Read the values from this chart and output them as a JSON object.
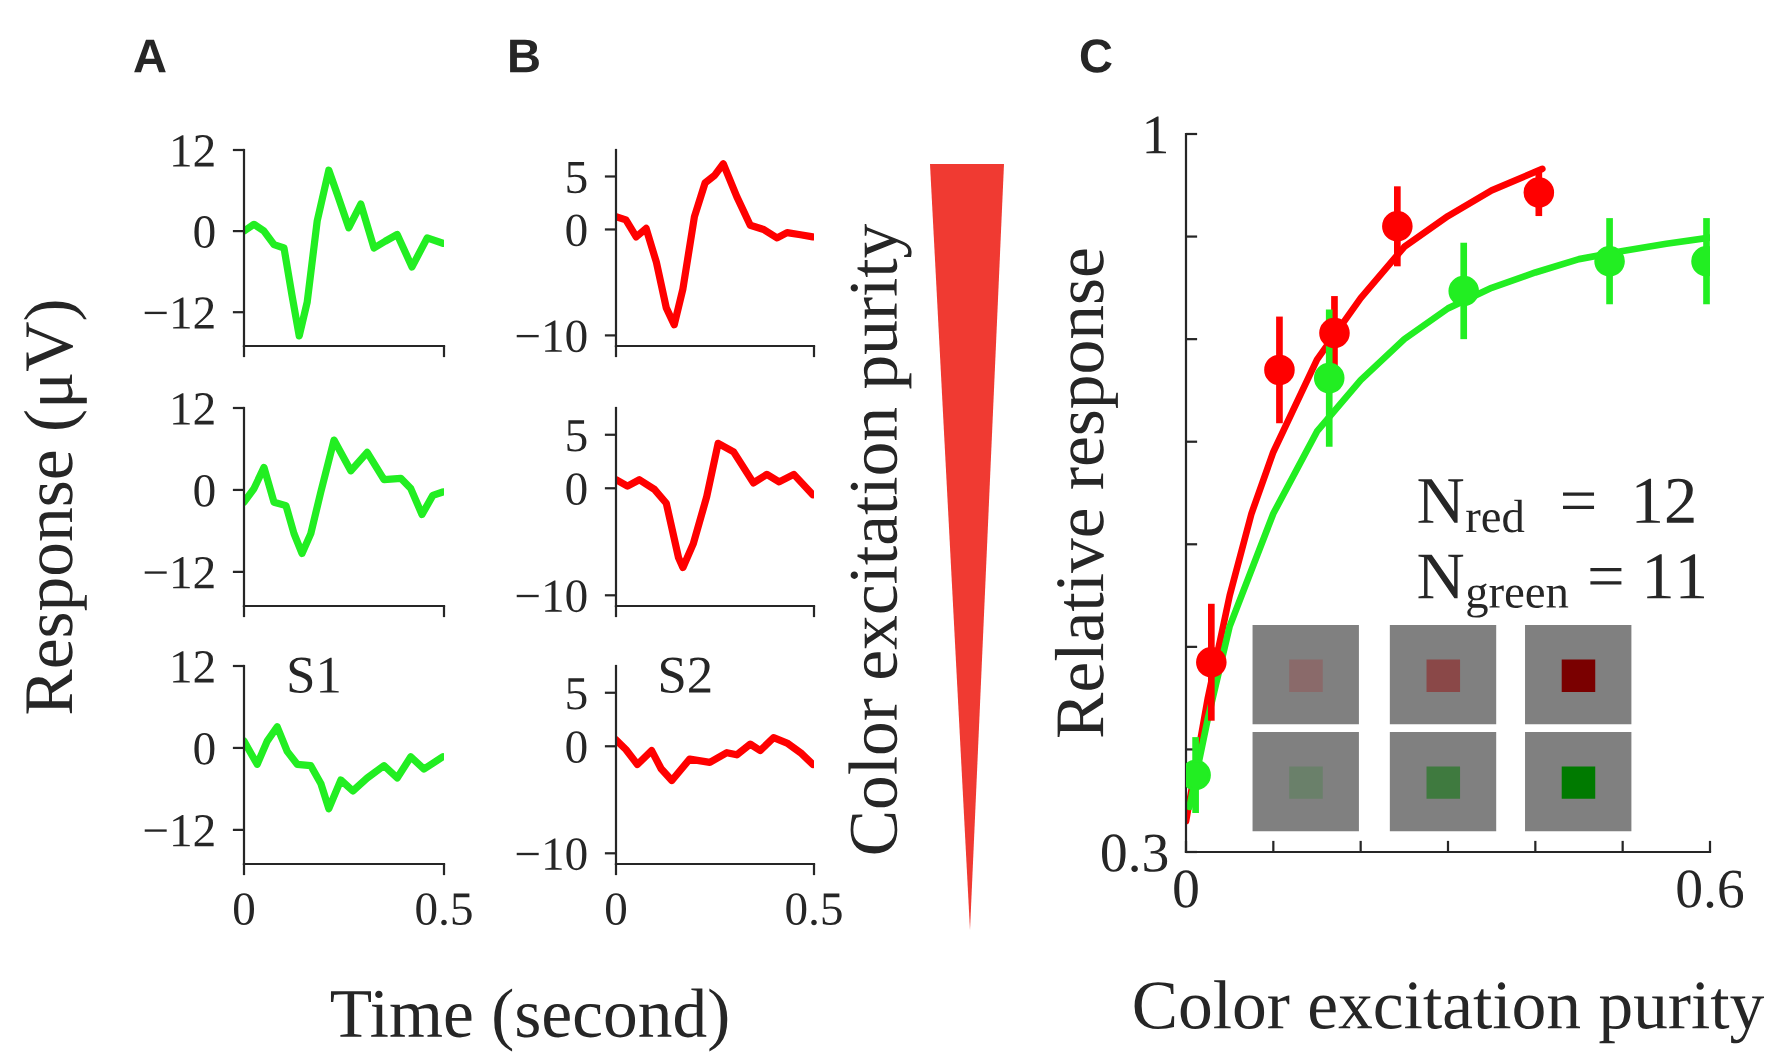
{
  "chart_data": [
    {
      "type": "line",
      "title": "A",
      "x": [
        0,
        0.025,
        0.05,
        0.075,
        0.1,
        0.12,
        0.138,
        0.158,
        0.183,
        0.212,
        0.233,
        0.262,
        0.292,
        0.325,
        0.353,
        0.383,
        0.42,
        0.458,
        0.497
      ],
      "series": [
        {
          "color": "#22ee22",
          "values": [
            0,
            1.0,
            0,
            -2,
            -2.5,
            -9.5,
            -15.5,
            -10.5,
            1.5,
            9,
            5.5,
            0.5,
            4,
            -2.5,
            -1.5,
            -0.5,
            -5.3,
            -1,
            -1.8
          ]
        }
      ],
      "xlim": [
        0,
        0.5
      ],
      "ylim": [
        -17,
        12
      ],
      "yticks": [
        {
          "value": -12,
          "label": "−12"
        },
        0,
        12
      ],
      "xticks": [
        0,
        0.5
      ],
      "tick_labels": "y"
    },
    {
      "type": "line",
      "ylabel": "Response (μV)",
      "x": [
        0,
        0.025,
        0.05,
        0.075,
        0.105,
        0.125,
        0.145,
        0.167,
        0.192,
        0.225,
        0.267,
        0.308,
        0.35,
        0.392,
        0.417,
        0.445,
        0.472,
        0.497
      ],
      "series": [
        {
          "color": "#22ee22",
          "values": [
            -1.8,
            0.2,
            3.3,
            -1.8,
            -2.3,
            -6.4,
            -9.3,
            -6.4,
            -0.3,
            7.3,
            2.8,
            5.5,
            1.5,
            1.7,
            0.2,
            -3.6,
            -0.8,
            -0.3
          ]
        }
      ],
      "xlim": [
        0,
        0.5
      ],
      "ylim": [
        -17,
        12
      ],
      "yticks": [
        {
          "value": -12,
          "label": "−12"
        },
        0,
        12
      ],
      "xticks": [
        0,
        0.5
      ],
      "tick_labels": "y"
    },
    {
      "type": "line",
      "annotations": [
        "S1",
        "Time (second)"
      ],
      "x": [
        0,
        0.033,
        0.058,
        0.083,
        0.108,
        0.133,
        0.167,
        0.192,
        0.212,
        0.242,
        0.272,
        0.308,
        0.35,
        0.383,
        0.417,
        0.45,
        0.497
      ],
      "series": [
        {
          "color": "#22ee22",
          "values": [
            1,
            -2.4,
            1,
            3.1,
            -0.5,
            -2.4,
            -2.6,
            -5.2,
            -8.9,
            -4.7,
            -6.3,
            -4.4,
            -2.6,
            -4.4,
            -1.3,
            -3.1,
            -1.3
          ]
        }
      ],
      "xlim": [
        0,
        0.5
      ],
      "ylim": [
        -17,
        12
      ],
      "yticks": [
        {
          "value": -12,
          "label": "−12"
        },
        0,
        12
      ],
      "xticks": [
        0,
        0.5
      ]
    },
    {
      "type": "line",
      "title": "B",
      "x": [
        0,
        0.025,
        0.051,
        0.076,
        0.102,
        0.127,
        0.147,
        0.169,
        0.198,
        0.225,
        0.249,
        0.271,
        0.305,
        0.339,
        0.373,
        0.407,
        0.432,
        0.466,
        0.497
      ],
      "series": [
        {
          "color": "#ff0000",
          "values": [
            1.2,
            0.9,
            -0.7,
            0.1,
            -3.1,
            -7.4,
            -9,
            -5.6,
            1.2,
            4.4,
            5.1,
            6.2,
            3.1,
            0.4,
            0,
            -0.8,
            -0.3,
            -0.5,
            -0.7
          ]
        }
      ],
      "xlim": [
        0,
        0.5
      ],
      "ylim": [
        -11,
        7.5
      ],
      "yticks": [
        {
          "value": -10,
          "label": "−10"
        },
        0,
        5
      ],
      "xticks": [
        0,
        0.5
      ],
      "tick_labels": "y"
    },
    {
      "type": "line",
      "annotations": [
        "Color excitation purity"
      ],
      "x": [
        0,
        0.029,
        0.059,
        0.097,
        0.127,
        0.158,
        0.169,
        0.195,
        0.229,
        0.258,
        0.297,
        0.347,
        0.381,
        0.412,
        0.449,
        0.497
      ],
      "series": [
        {
          "color": "#ff0000",
          "values": [
            0.8,
            0.2,
            0.8,
            -0.1,
            -1.4,
            -6.5,
            -7.4,
            -5.2,
            -0.8,
            4.2,
            3.4,
            0.5,
            1.3,
            0.6,
            1.3,
            -0.6
          ]
        }
      ],
      "xlim": [
        0,
        0.5
      ],
      "ylim": [
        -11,
        7.5
      ],
      "yticks": [
        {
          "value": -10,
          "label": "−10"
        },
        0,
        5
      ],
      "xticks": [
        0,
        0.5
      ],
      "tick_labels": "y"
    },
    {
      "type": "line",
      "annotations": [
        "S2"
      ],
      "x": [
        0,
        0.025,
        0.054,
        0.09,
        0.114,
        0.141,
        0.186,
        0.237,
        0.28,
        0.305,
        0.339,
        0.364,
        0.398,
        0.432,
        0.466,
        0.497
      ],
      "series": [
        {
          "color": "#ff0000",
          "values": [
            0.6,
            -0.3,
            -1.7,
            -0.4,
            -2.1,
            -3.2,
            -1.2,
            -1.5,
            -0.6,
            -0.8,
            0.2,
            -0.4,
            0.8,
            0.3,
            -0.6,
            -1.7
          ]
        }
      ],
      "xlim": [
        0,
        0.5
      ],
      "ylim": [
        -11,
        7.5
      ],
      "yticks": [
        {
          "value": -10,
          "label": "−10"
        },
        0,
        5
      ],
      "xticks": [
        0,
        0.5
      ]
    },
    {
      "type": "scatter",
      "title": "C",
      "xlabel": "Color excitation purity",
      "ylabel": "Relative response",
      "annotations": [
        "N$_{red}$  =  12",
        "N$_{green}$ = 11"
      ],
      "series": [
        {
          "type": "line",
          "color": "#ff0000",
          "x": [
            0,
            0.025,
            0.05,
            0.075,
            0.1,
            0.15,
            0.2,
            0.25,
            0.3,
            0.35,
            0.408
          ],
          "values": [
            0.33,
            0.45,
            0.55,
            0.63,
            0.69,
            0.78,
            0.84,
            0.89,
            0.92,
            0.945,
            0.966
          ]
        },
        {
          "type": "line",
          "color": "#22ee22",
          "x": [
            0.004,
            0.025,
            0.05,
            0.1,
            0.15,
            0.2,
            0.25,
            0.3,
            0.35,
            0.4,
            0.45,
            0.5,
            0.55,
            0.6
          ],
          "values": [
            0.344,
            0.43,
            0.52,
            0.63,
            0.71,
            0.76,
            0.8,
            0.83,
            0.85,
            0.865,
            0.878,
            0.886,
            0.893,
            0.899
          ]
        },
        {
          "type": "scatter",
          "marker": "circle",
          "color": "#ff0000",
          "x": [
            0.029,
            0.107,
            0.17,
            0.242,
            0.404
          ],
          "values": [
            0.485,
            0.77,
            0.806,
            0.91,
            0.943
          ],
          "errors": [
            0.057,
            0.052,
            0.036,
            0.039,
            0.023
          ]
        },
        {
          "type": "scatter",
          "marker": "circle",
          "color": "#22ee22",
          "x": [
            0.011,
            0.164,
            0.318,
            0.485,
            0.596
          ],
          "values": [
            0.375,
            0.762,
            0.847,
            0.876,
            0.876
          ],
          "errors": [
            0.037,
            0.067,
            0.047,
            0.042,
            0.042
          ]
        }
      ],
      "xlim": [
        0,
        0.6
      ],
      "ylim": [
        0.3,
        1
      ],
      "xticks": [
        0,
        {
          "value": 0.1,
          "label": null
        },
        {
          "value": 0.2,
          "label": null
        },
        {
          "value": 0.3,
          "label": null
        },
        {
          "value": 0.4,
          "label": null
        },
        {
          "value": 0.5,
          "label": null
        },
        0.6
      ],
      "yticks": [
        0.3,
        {
          "value": 0.4,
          "label": null
        },
        {
          "value": 0.5,
          "label": null
        },
        {
          "value": 0.6,
          "label": null
        },
        {
          "value": 0.7,
          "label": null
        },
        {
          "value": 0.8,
          "label": null
        },
        {
          "value": 0.9,
          "label": null
        },
        1
      ]
    }
  ]
}
